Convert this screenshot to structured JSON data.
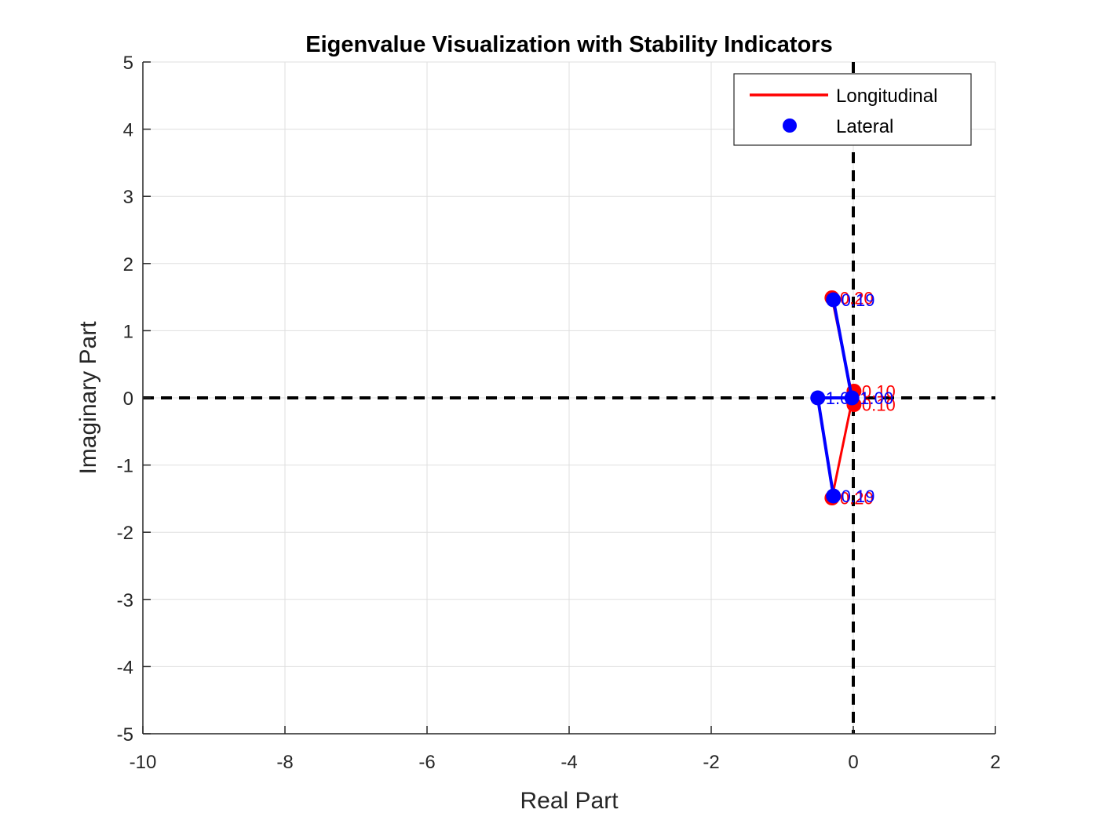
{
  "chart_data": {
    "type": "scatter",
    "title": "Eigenvalue Visualization with Stability Indicators",
    "xlabel": "Real Part",
    "ylabel": "Imaginary Part",
    "xlim": [
      -10,
      2
    ],
    "ylim": [
      -5,
      5
    ],
    "xticks": [
      -10,
      -8,
      -6,
      -4,
      -2,
      0,
      2
    ],
    "yticks": [
      -5,
      -4,
      -3,
      -2,
      -1,
      0,
      1,
      2,
      3,
      4,
      5
    ],
    "grid": true,
    "legend_position": "top-right",
    "reference_lines": [
      {
        "orientation": "vertical",
        "value": 0,
        "style": "dashed",
        "color": "#000000"
      },
      {
        "orientation": "horizontal",
        "value": 0,
        "style": "dashed",
        "color": "#000000"
      }
    ],
    "series": [
      {
        "name": "Longitudinal",
        "color": "#ff0000",
        "marker": "circle",
        "points": [
          {
            "x": -0.3,
            "y": 1.49,
            "label": "0.20"
          },
          {
            "x": -0.3,
            "y": -1.49,
            "label": "0.20"
          },
          {
            "x": 0.01,
            "y": 0.1,
            "label": "0.10"
          },
          {
            "x": 0.01,
            "y": -0.1,
            "label": "0.10"
          }
        ]
      },
      {
        "name": "Lateral",
        "color": "#0000ff",
        "marker": "circle",
        "points": [
          {
            "x": -0.28,
            "y": 1.46,
            "label": "0.19"
          },
          {
            "x": -0.28,
            "y": -1.46,
            "label": "0.19"
          },
          {
            "x": -0.5,
            "y": 0.0,
            "label": "1.00"
          },
          {
            "x": -0.02,
            "y": 0.0,
            "label": "1.00"
          }
        ]
      }
    ]
  }
}
